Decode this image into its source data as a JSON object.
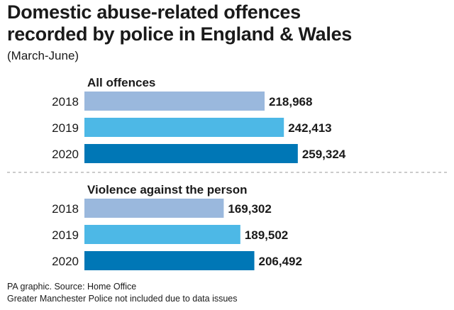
{
  "title_lines": [
    "Domestic abuse-related offences",
    "recorded by police in England & Wales"
  ],
  "subtitle": "(March-June)",
  "footer": {
    "source": "PA graphic. Source: Home Office",
    "note": "Greater Manchester Police not included due to data issues"
  },
  "colors": {
    "2018": "#9ab8dd",
    "2019": "#4db8e6",
    "2020": "#0077b6",
    "separator": "#999999"
  },
  "chart_data": [
    {
      "type": "bar",
      "orientation": "horizontal",
      "title": "All offences",
      "categories": [
        "2018",
        "2019",
        "2020"
      ],
      "values": [
        218968,
        242413,
        259324
      ],
      "value_labels": [
        "218,968",
        "242,413",
        "259,324"
      ]
    },
    {
      "type": "bar",
      "orientation": "horizontal",
      "title": "Violence against the person",
      "categories": [
        "2018",
        "2019",
        "2020"
      ],
      "values": [
        169302,
        189502,
        206492
      ],
      "value_labels": [
        "169,302",
        "189,502",
        "206,492"
      ]
    }
  ]
}
